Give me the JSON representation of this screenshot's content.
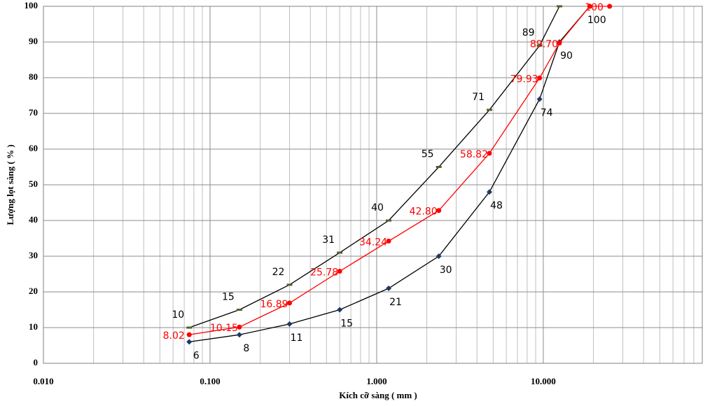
{
  "chart_data": {
    "type": "line",
    "x_label": "Kích cỡ sàng ( mm )",
    "y_label": "Lượng lọt sàng ( % )",
    "xlim": [
      0.01,
      90
    ],
    "log_x": true,
    "xticks": [
      {
        "value": 0.01,
        "label": "0.010"
      },
      {
        "value": 0.1,
        "label": "0.100"
      },
      {
        "value": 1,
        "label": "1.000"
      },
      {
        "value": 10,
        "label": "10.000"
      }
    ],
    "ylim": [
      0,
      100
    ],
    "yticks": [
      0,
      10,
      20,
      30,
      40,
      50,
      60,
      70,
      80,
      90,
      100
    ],
    "grid": true,
    "minor_grid": true,
    "series": [
      {
        "color": "#000000",
        "marker_color": "#4f6228",
        "marker": "dash",
        "x": [
          0.075,
          0.15,
          0.3,
          0.6,
          1.18,
          2.36,
          4.75,
          9.5,
          12.5
        ],
        "values": [
          10,
          15,
          22,
          31,
          40,
          55,
          71,
          89,
          100
        ]
      },
      {
        "color": "#000000",
        "marker_color": "#1f3864",
        "marker": "diamond",
        "x": [
          0.075,
          0.15,
          0.3,
          0.6,
          1.18,
          2.36,
          4.75,
          9.5,
          12.5,
          19
        ],
        "values": [
          6,
          8,
          11,
          15,
          21,
          30,
          48,
          74,
          90,
          100
        ]
      },
      {
        "color": "#ff0000",
        "marker_color": "#ff0000",
        "marker": "circle",
        "x": [
          0.075,
          0.15,
          0.3,
          0.6,
          1.18,
          2.36,
          4.75,
          9.5,
          12.5,
          19,
          25
        ],
        "values": [
          8.02,
          10.15,
          16.89,
          25.78,
          34.24,
          42.8,
          58.82,
          79.93,
          89.7,
          100,
          100
        ],
        "value_labels": [
          "8.02",
          "10.15",
          "16.89",
          "25.78",
          "34.24",
          "42.80",
          "58.82",
          "79.93",
          "89.70",
          null,
          "100"
        ]
      }
    ]
  }
}
